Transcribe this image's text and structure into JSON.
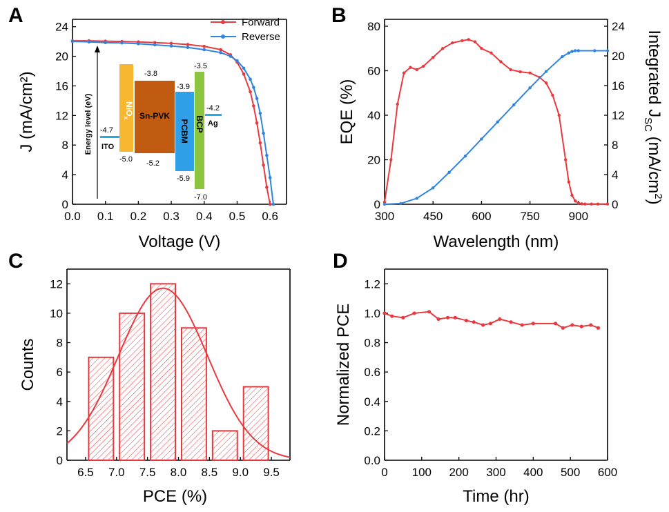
{
  "panels": {
    "A": "A",
    "B": "B",
    "C": "C",
    "D": "D"
  },
  "colors": {
    "red": "#e8393f",
    "blue": "#2f84e0",
    "ito": "#29a9e0",
    "nio": "#f7b731",
    "pvk": "#c25b12",
    "pcbm": "#2f9fe8",
    "bcp": "#8cc63f",
    "ag": "#29a9e0"
  },
  "chart_data": [
    {
      "id": "A",
      "type": "line",
      "title": "",
      "xlabel": "Voltage (V)",
      "ylabel": "J (mA/cm²)",
      "xlim": [
        0,
        0.65
      ],
      "ylim": [
        0,
        25
      ],
      "xticks": [
        "0.0",
        "0.1",
        "0.2",
        "0.3",
        "0.4",
        "0.5",
        "0.6"
      ],
      "yticks": [
        "0",
        "4",
        "8",
        "12",
        "16",
        "20",
        "24"
      ],
      "legend": "top-right",
      "series": [
        {
          "name": "Forward",
          "color": "#e8393f",
          "x": [
            0,
            0.05,
            0.1,
            0.15,
            0.2,
            0.25,
            0.3,
            0.35,
            0.4,
            0.45,
            0.48,
            0.5,
            0.52,
            0.54,
            0.55,
            0.56,
            0.57,
            0.58,
            0.59,
            0.6
          ],
          "y": [
            22.1,
            22.1,
            22.05,
            22.0,
            21.95,
            21.85,
            21.75,
            21.6,
            21.35,
            20.9,
            20.2,
            19.2,
            17.6,
            15.2,
            13.3,
            11.0,
            8.3,
            5.3,
            2.3,
            0.0
          ]
        },
        {
          "name": "Reverse",
          "color": "#2f84e0",
          "x": [
            0,
            0.05,
            0.1,
            0.15,
            0.2,
            0.25,
            0.3,
            0.35,
            0.4,
            0.45,
            0.48,
            0.5,
            0.52,
            0.54,
            0.55,
            0.56,
            0.57,
            0.58,
            0.59,
            0.6,
            0.61
          ],
          "y": [
            22.0,
            21.95,
            21.85,
            21.8,
            21.7,
            21.55,
            21.4,
            21.2,
            20.9,
            20.5,
            20.0,
            19.4,
            18.4,
            16.9,
            15.8,
            14.3,
            12.3,
            9.6,
            6.6,
            3.6,
            0.0
          ]
        }
      ],
      "inset": {
        "axis_label": "Energy level (eV)",
        "layers": [
          {
            "name": "ITO",
            "top": "-4.7"
          },
          {
            "name": "NiOx",
            "bottom": "-5.0"
          },
          {
            "name": "Sn-PVK",
            "top": "-3.8",
            "bottom": "-5.2"
          },
          {
            "name": "PCBM",
            "top": "-3.9",
            "bottom": "-5.9"
          },
          {
            "name": "BCP",
            "top": "-3.5",
            "bottom": "-7.0"
          },
          {
            "name": "Ag",
            "top": "-4.2"
          }
        ],
        "nio_main": "NiO",
        "nio_sub": "x"
      }
    },
    {
      "id": "B",
      "type": "line",
      "title": "",
      "xlabel": "Wavelength (nm)",
      "ylabel": "EQE (%)",
      "y2label": "Integrated J",
      "y2label_sub": "SC",
      "y2label_tail": " (mA/cm",
      "xlim": [
        300,
        990
      ],
      "ylim": [
        0,
        80
      ],
      "y2lim": [
        0,
        24
      ],
      "xticks": [
        "300",
        "450",
        "600",
        "750",
        "900"
      ],
      "yticks": [
        "0",
        "20",
        "40",
        "60",
        "80"
      ],
      "y2ticks": [
        "0",
        "4",
        "8",
        "12",
        "16",
        "20",
        "24"
      ],
      "series": [
        {
          "name": "EQE",
          "axis": "left",
          "color": "#e8393f",
          "x": [
            300,
            320,
            340,
            360,
            380,
            400,
            420,
            450,
            480,
            510,
            540,
            560,
            580,
            600,
            630,
            660,
            690,
            720,
            750,
            780,
            800,
            820,
            840,
            860,
            870,
            880,
            890,
            900,
            910,
            920,
            940,
            960,
            990
          ],
          "y": [
            1,
            20,
            45,
            59,
            61.5,
            60.5,
            62,
            66,
            70,
            72.5,
            73.5,
            74,
            73,
            70,
            68,
            64,
            60.5,
            59.5,
            59,
            57,
            54.5,
            49,
            40,
            20,
            10,
            4,
            1.5,
            0.5,
            0.2,
            0.1,
            0.1,
            0.1,
            0.1
          ]
        },
        {
          "name": "Integrated Jsc",
          "axis": "right",
          "color": "#2f84e0",
          "x": [
            300,
            350,
            400,
            450,
            500,
            550,
            600,
            650,
            700,
            750,
            800,
            850,
            870,
            880,
            890,
            900,
            950,
            990
          ],
          "y": [
            0,
            0.1,
            0.8,
            2.2,
            4.3,
            6.5,
            8.8,
            11.1,
            13.4,
            15.7,
            17.9,
            19.9,
            20.4,
            20.6,
            20.7,
            20.7,
            20.7,
            20.7
          ]
        }
      ]
    },
    {
      "id": "C",
      "type": "bar",
      "title": "",
      "xlabel": "PCE (%)",
      "ylabel": "Counts",
      "xlim": [
        6.2,
        9.8
      ],
      "ylim": [
        0,
        13
      ],
      "xticks": [
        "6.5",
        "7.0",
        "7.5",
        "8.0",
        "8.5",
        "9.0",
        "9.5"
      ],
      "yticks": [
        "0",
        "2",
        "4",
        "6",
        "8",
        "10",
        "12"
      ],
      "bin_centers": [
        6.75,
        7.25,
        7.75,
        8.25,
        8.75,
        9.25
      ],
      "values": [
        7,
        10,
        12,
        9,
        2,
        5
      ],
      "bin_width": 0.4,
      "fit": {
        "type": "normal",
        "peak": 11.7,
        "mean": 7.75,
        "sigma": 0.72
      }
    },
    {
      "id": "D",
      "type": "line",
      "title": "",
      "xlabel": "Time (hr)",
      "ylabel": "Normalized PCE",
      "xlim": [
        0,
        600
      ],
      "ylim": [
        0,
        1.3
      ],
      "xticks": [
        "0",
        "100",
        "200",
        "300",
        "400",
        "500",
        "600"
      ],
      "yticks": [
        "0.0",
        "0.2",
        "0.4",
        "0.6",
        "0.8",
        "1.0",
        "1.2"
      ],
      "series": [
        {
          "name": "Normalized PCE",
          "color": "#e8393f",
          "x": [
            0,
            20,
            50,
            80,
            120,
            145,
            170,
            190,
            220,
            240,
            265,
            285,
            310,
            340,
            370,
            400,
            460,
            480,
            505,
            530,
            555,
            575
          ],
          "y": [
            1.0,
            0.98,
            0.97,
            1.0,
            1.01,
            0.96,
            0.97,
            0.97,
            0.95,
            0.94,
            0.92,
            0.93,
            0.96,
            0.94,
            0.92,
            0.93,
            0.93,
            0.9,
            0.92,
            0.91,
            0.92,
            0.9
          ]
        }
      ]
    }
  ]
}
